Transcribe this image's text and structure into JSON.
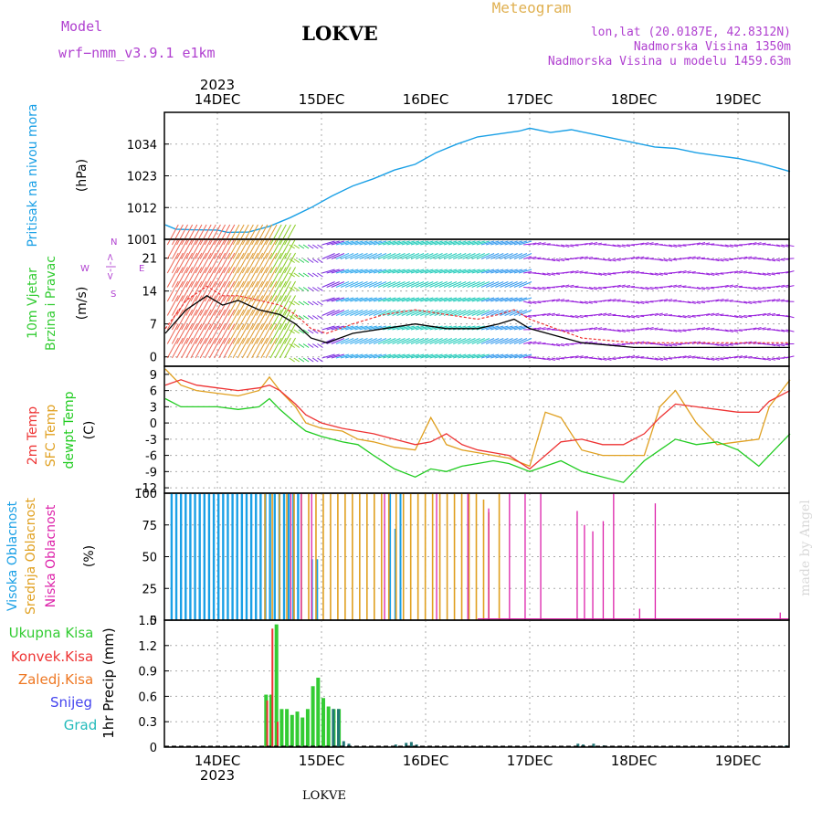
{
  "header": {
    "model_label": "Model",
    "model_name": "wrf−nmm_v3.9.1  e1km",
    "title": "LOKVE",
    "meteogram": "Meteogram",
    "coords": "lon,lat (20.0187E, 42.8312N)",
    "elevation": "Nadmorska Visina 1350m",
    "model_elevation": "Nadmorska Visina u modelu 1459.63m"
  },
  "top_axis": {
    "year": "2023",
    "labels": [
      "14DEC",
      "15DEC",
      "16DEC",
      "17DEC",
      "18DEC",
      "19DEC"
    ]
  },
  "bottom_axis": {
    "year": "2023",
    "labels": [
      "14DEC",
      "15DEC",
      "16DEC",
      "17DEC",
      "18DEC",
      "19DEC"
    ],
    "station": "LOKVE"
  },
  "watermark": "made by Angel",
  "colors": {
    "pressure": "#1aa0e6",
    "t2m": "#ee3333",
    "tsfc": "#e0a020",
    "dewpt": "#22cc22",
    "high_cloud": "#1aa0e6",
    "mid_cloud": "#e0a020",
    "low_cloud": "#dd22aa",
    "total_precip": "#33cc33",
    "conv_precip": "#ee3333",
    "frozen_precip": "#ee7722",
    "snow": "#4444ee",
    "graupel": "#22bbbb",
    "wind_speed": "#000000",
    "gust": "#ee3333"
  },
  "chart_data": [
    {
      "type": "line",
      "panel": "pressure",
      "ylabel_1": "Pritisak na nivou mora",
      "ylabel_2": "(hPa)",
      "ylim": [
        1001,
        1045
      ],
      "yticks": [
        1001,
        1012,
        1023,
        1034
      ],
      "x": [
        0,
        0.1,
        0.25,
        0.5,
        0.6,
        0.8,
        1.0,
        1.2,
        1.4,
        1.6,
        1.8,
        2.0,
        2.2,
        2.4,
        2.6,
        2.8,
        3.0,
        3.2,
        3.4,
        3.5,
        3.7,
        3.9,
        4.1,
        4.3,
        4.5,
        4.7,
        4.9,
        5.1,
        5.3,
        5.5,
        5.7,
        5.9,
        6.0
      ],
      "series": [
        {
          "values": [
            1006,
            1004.5,
            1004.3,
            1004.2,
            1003.4,
            1003.5,
            1005.5,
            1008.5,
            1012,
            1016,
            1019.5,
            1022,
            1025,
            1027,
            1031,
            1034,
            1036.5,
            1037.5,
            1038.5,
            1039.5,
            1038,
            1039,
            1037.5,
            1036,
            1034.5,
            1033,
            1032.5,
            1031,
            1030,
            1029,
            1027.5,
            1025.5,
            1024.5
          ]
        }
      ],
      "grid": true
    },
    {
      "type": "line",
      "panel": "wind",
      "ylabel_1": "10m Vjetar",
      "ylabel_2": "Brzina i Pravac",
      "ylabel_3": "(m/s)",
      "compass": {
        "n": "N",
        "e": "E",
        "s": "S",
        "w": "W",
        "sym": "<-|->"
      },
      "ylim": [
        -2,
        25
      ],
      "yticks": [
        0,
        7,
        14,
        21
      ],
      "x": [
        0,
        0.2,
        0.4,
        0.55,
        0.7,
        0.9,
        1.1,
        1.25,
        1.4,
        1.55,
        1.8,
        2.1,
        2.4,
        2.7,
        3.0,
        3.2,
        3.35,
        3.5,
        4.0,
        4.5,
        5.0,
        5.5,
        6.0
      ],
      "series": [
        {
          "name": "speed",
          "values": [
            5,
            10,
            13,
            11,
            12,
            10,
            9,
            7,
            4,
            3,
            5,
            6,
            7,
            6,
            6,
            7,
            8,
            6,
            3,
            2,
            2,
            2,
            2
          ]
        },
        {
          "name": "gust",
          "values": [
            6,
            12,
            15,
            13,
            13,
            12,
            11,
            9,
            6,
            5,
            7,
            9,
            10,
            9,
            8,
            9,
            10,
            8,
            4,
            3,
            3,
            3,
            3
          ]
        }
      ],
      "grid": true
    },
    {
      "type": "line",
      "panel": "temperature",
      "ylabel_1": "2m Temp",
      "ylabel_2": "SFC Temp",
      "ylabel_3": "dewpt Temp",
      "ylabel_4": "(C)",
      "ylim": [
        -13,
        10.5
      ],
      "yticks": [
        -12,
        -9,
        -6,
        -3,
        0,
        3,
        6,
        9
      ],
      "x": [
        0,
        0.15,
        0.3,
        0.5,
        0.7,
        0.9,
        1.0,
        1.1,
        1.25,
        1.35,
        1.5,
        1.7,
        1.85,
        2.0,
        2.2,
        2.4,
        2.55,
        2.7,
        2.85,
        3.0,
        3.15,
        3.3,
        3.5,
        3.65,
        3.8,
        4.0,
        4.2,
        4.4,
        4.6,
        4.75,
        4.9,
        5.1,
        5.3,
        5.5,
        5.7,
        5.8,
        6.0
      ],
      "series": [
        {
          "name": "2m",
          "values": [
            7,
            8,
            7,
            6.5,
            6,
            6.5,
            7,
            6,
            3.5,
            1.5,
            0,
            -1,
            -1.5,
            -2,
            -3,
            -4,
            -3.5,
            -2,
            -4,
            -5,
            -5.5,
            -6,
            -8.5,
            -6,
            -3.5,
            -3,
            -4,
            -4,
            -2,
            1,
            3.5,
            3,
            2.5,
            2,
            2,
            4,
            6
          ]
        },
        {
          "name": "sfc",
          "values": [
            10,
            7,
            6,
            5.5,
            5,
            6,
            8.5,
            6,
            3,
            0,
            -1,
            -1.5,
            -3,
            -3.5,
            -4.5,
            -5,
            1,
            -4,
            -5,
            -5.5,
            -6,
            -6.5,
            -8,
            2,
            1,
            -5,
            -6,
            -6,
            -6,
            3,
            6,
            0,
            -4,
            -3.5,
            -3,
            3,
            8
          ]
        },
        {
          "name": "dewpt",
          "values": [
            4.5,
            3,
            3,
            3,
            2.5,
            3,
            4.5,
            2.5,
            0,
            -1.5,
            -2.5,
            -3.5,
            -4,
            -6,
            -8.5,
            -10,
            -8.5,
            -9,
            -8,
            -7.5,
            -7,
            -7.5,
            -9,
            -8,
            -7,
            -9,
            -10,
            -11,
            -7,
            -5,
            -3,
            -4,
            -3.5,
            -5,
            -8,
            -6,
            -2
          ]
        }
      ],
      "grid": true
    },
    {
      "type": "bar",
      "panel": "cloud",
      "ylabel_1": "Visoka Oblacnost",
      "ylabel_2": "Srednja Oblacnost",
      "ylabel_3": "Niska Oblacnost",
      "ylabel_4": "(%)",
      "ylim": [
        0,
        100
      ],
      "yticks": [
        0,
        25,
        50,
        75,
        100
      ],
      "high": {
        "x_start": 0.05,
        "x_end": 1.28,
        "step": 0.045,
        "value": 100,
        "extra": [
          [
            1.4,
            48
          ],
          [
            1.45,
            48
          ],
          [
            2.15,
            100
          ],
          [
            2.2,
            72
          ],
          [
            2.25,
            100
          ]
        ]
      },
      "mid": {
        "x_start": 0.95,
        "x_end": 3.0,
        "step": 0.07,
        "value": 100,
        "extra": [
          [
            3.05,
            95
          ],
          [
            3.1,
            85
          ],
          [
            3.2,
            100
          ]
        ]
      },
      "low": {
        "x": [
          1.2,
          1.3,
          1.4,
          2.1,
          2.6,
          2.9,
          3.1,
          3.3,
          3.45,
          3.6,
          3.95,
          4.02,
          4.1,
          4.2,
          4.3,
          4.55,
          4.7,
          5.9
        ],
        "values": [
          100,
          100,
          100,
          100,
          100,
          100,
          88,
          100,
          100,
          100,
          86,
          75,
          70,
          78,
          100,
          9,
          92,
          6
        ]
      },
      "grid": true
    },
    {
      "type": "bar",
      "panel": "precip",
      "legend": [
        "Ukupna Kisa",
        "Konvek.Kisa",
        "Zaledj.Kisa",
        "Snijeg",
        "Grad"
      ],
      "ylabel_1": "1hr Precip (mm)",
      "ylim": [
        0,
        1.5
      ],
      "yticks": [
        0,
        0.3,
        0.6,
        0.9,
        1.2,
        1.5
      ],
      "total": {
        "x": [
          0.95,
          1.0,
          1.05,
          1.1,
          1.15,
          1.2,
          1.25,
          1.3,
          1.35,
          1.4,
          1.45,
          1.5,
          1.55,
          1.6,
          1.65
        ],
        "values": [
          0.62,
          0.62,
          1.45,
          0.45,
          0.45,
          0.38,
          0.42,
          0.35,
          0.45,
          0.72,
          0.82,
          0.58,
          0.48,
          0.45,
          0.45
        ]
      },
      "conv": {
        "x": [
          0.97,
          1.02,
          1.07
        ],
        "values": [
          0.55,
          1.4,
          0.3
        ]
      },
      "graupel": {
        "x": [
          1.6,
          1.65,
          1.7,
          1.75,
          2.2,
          2.3,
          2.35,
          2.4,
          3.95,
          4.0,
          4.1,
          4.2,
          5.95
        ],
        "values": [
          0.45,
          0.45,
          0.07,
          0.04,
          0.03,
          0.05,
          0.06,
          0.03,
          0.04,
          0.03,
          0.04,
          0.02,
          0.02
        ]
      },
      "grid": true
    }
  ]
}
